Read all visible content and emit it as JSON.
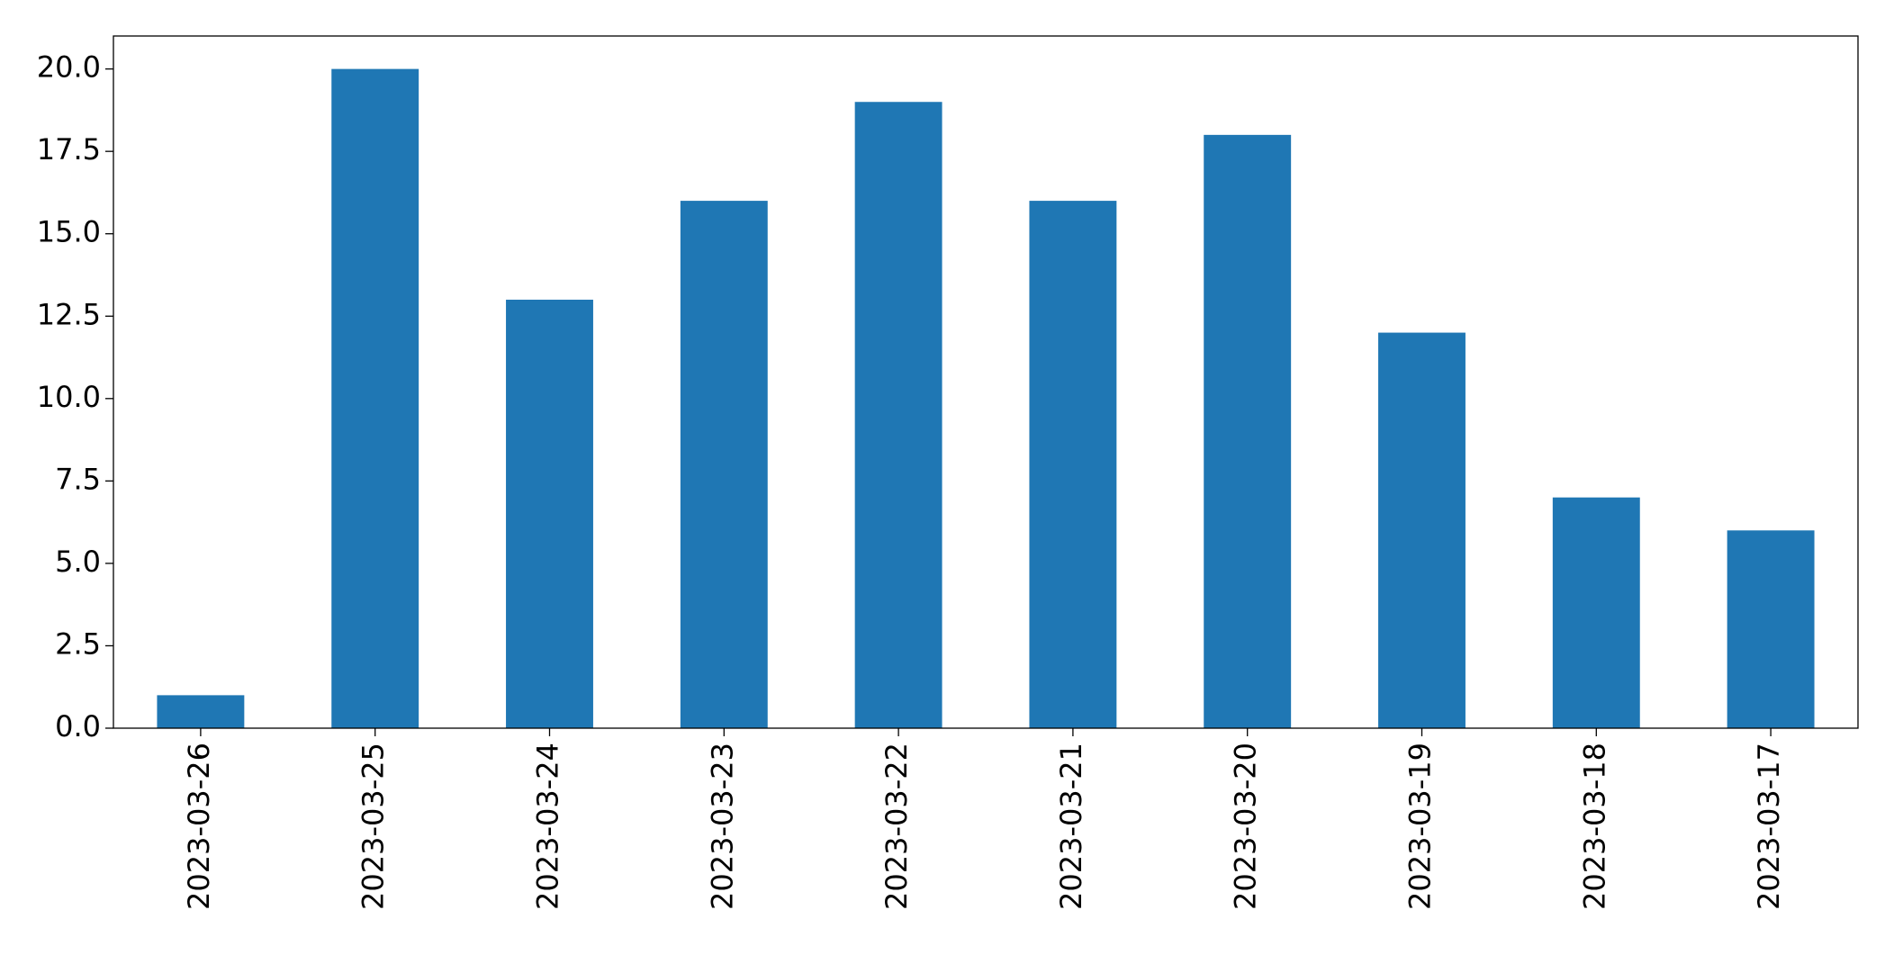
{
  "chart_data": {
    "type": "bar",
    "categories": [
      "2023-03-26",
      "2023-03-25",
      "2023-03-24",
      "2023-03-23",
      "2023-03-22",
      "2023-03-21",
      "2023-03-20",
      "2023-03-19",
      "2023-03-18",
      "2023-03-17"
    ],
    "values": [
      1,
      20,
      13,
      16,
      19,
      16,
      18,
      12,
      7,
      6
    ],
    "color": "#1f77b4",
    "ylim": [
      0,
      21
    ],
    "yticks": [
      {
        "value": 0,
        "label": "0.0"
      },
      2.5,
      {
        "value": 5,
        "label": "5.0"
      },
      7.5,
      {
        "value": 10,
        "label": "10.0"
      },
      12.5,
      {
        "value": 15,
        "label": "15.0"
      },
      17.5,
      {
        "value": 20,
        "label": "20.0"
      }
    ],
    "grid": false
  }
}
